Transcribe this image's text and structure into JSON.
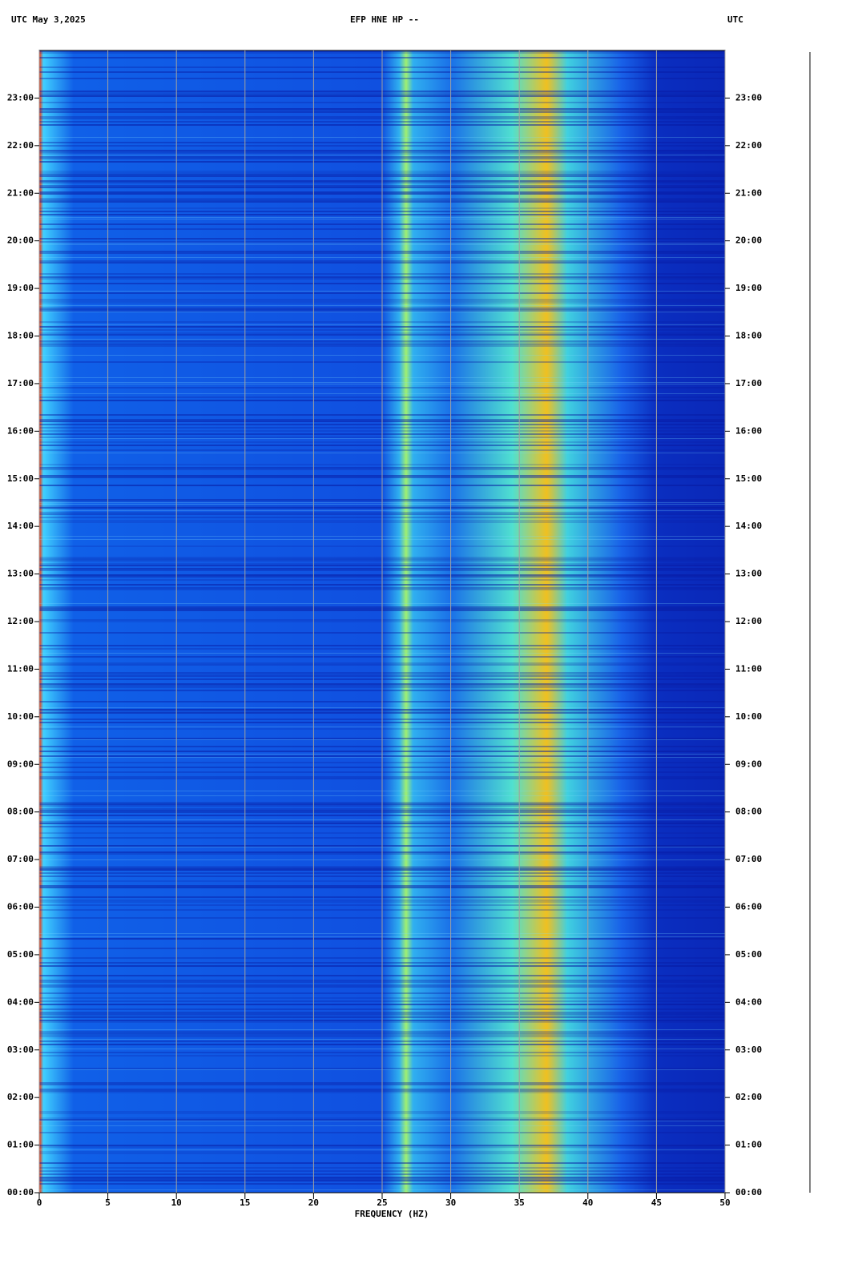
{
  "chart_data": {
    "type": "spectrogram",
    "title": "EFP HNE HP --",
    "left_header": "UTC  May 3,2025",
    "right_header": "UTC",
    "x_label": "FREQUENCY (HZ)",
    "xlim": [
      0,
      50
    ],
    "xticks": [
      0,
      5,
      10,
      15,
      20,
      25,
      30,
      35,
      40,
      45,
      50
    ],
    "ylim": [
      0,
      24
    ],
    "yticks": [
      {
        "value": 0,
        "label": "00:00"
      },
      {
        "value": 1,
        "label": "01:00"
      },
      {
        "value": 2,
        "label": "02:00"
      },
      {
        "value": 3,
        "label": "03:00"
      },
      {
        "value": 4,
        "label": "04:00"
      },
      {
        "value": 5,
        "label": "05:00"
      },
      {
        "value": 6,
        "label": "06:00"
      },
      {
        "value": 7,
        "label": "07:00"
      },
      {
        "value": 8,
        "label": "08:00"
      },
      {
        "value": 9,
        "label": "09:00"
      },
      {
        "value": 10,
        "label": "10:00"
      },
      {
        "value": 11,
        "label": "11:00"
      },
      {
        "value": 12,
        "label": "12:00"
      },
      {
        "value": 13,
        "label": "13:00"
      },
      {
        "value": 14,
        "label": "14:00"
      },
      {
        "value": 15,
        "label": "15:00"
      },
      {
        "value": 16,
        "label": "16:00"
      },
      {
        "value": 17,
        "label": "17:00"
      },
      {
        "value": 18,
        "label": "18:00"
      },
      {
        "value": 19,
        "label": "19:00"
      },
      {
        "value": 20,
        "label": "20:00"
      },
      {
        "value": 21,
        "label": "21:00"
      },
      {
        "value": 22,
        "label": "22:00"
      },
      {
        "value": 23,
        "label": "23:00"
      }
    ],
    "grid": true
  }
}
